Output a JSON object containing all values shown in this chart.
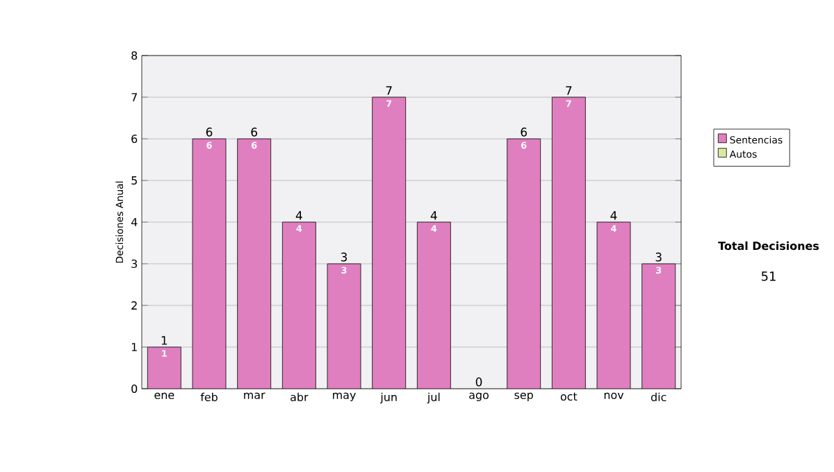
{
  "chart_data": {
    "type": "bar",
    "stacked": true,
    "ylabel": "Decisiones Anual",
    "categories": [
      "ene",
      "feb",
      "mar",
      "abr",
      "may",
      "jun",
      "jul",
      "ago",
      "sep",
      "oct",
      "nov",
      "dic"
    ],
    "series": [
      {
        "name": "Sentencias",
        "color": "#e07fbf",
        "values": [
          1,
          6,
          6,
          4,
          3,
          7,
          4,
          0,
          6,
          7,
          4,
          3
        ],
        "value_labels": [
          "1",
          "6",
          "6",
          "4",
          "3",
          "7",
          "4",
          null,
          "6",
          "7",
          "4",
          "3"
        ]
      },
      {
        "name": "Autos",
        "color": "#d8eaa0",
        "values": [
          0,
          0,
          0,
          0,
          0,
          0,
          0,
          0,
          0,
          0,
          0,
          0
        ]
      }
    ],
    "totals": [
      "1",
      "6",
      "6",
      "4",
      "3",
      "7",
      "4",
      "0",
      "6",
      "7",
      "4",
      "3"
    ],
    "ylim": [
      0,
      8
    ],
    "yticks": [
      0,
      1,
      2,
      3,
      4,
      5,
      6,
      7,
      8
    ],
    "grid": "y",
    "legend": "right",
    "annotations": [
      "Total Decisiones",
      "51"
    ]
  }
}
